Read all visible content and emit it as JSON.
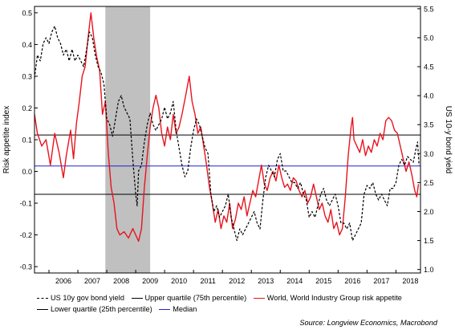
{
  "colors": {
    "risk": "#e8141e",
    "yield": "#000000",
    "upper": "#000000",
    "lower": "#000000",
    "median": "#2222cc",
    "recession": "#c0c0c0"
  },
  "source": "Source: Longview Economics, Macrobond",
  "chart_data": {
    "type": "line",
    "xlim": [
      2005.5,
      2018.85
    ],
    "x_ticks": [
      "2006",
      "2007",
      "2008",
      "2009",
      "2010",
      "2011",
      "2012",
      "2013",
      "2014",
      "2015",
      "2016",
      "2017",
      "2018"
    ],
    "y_left": {
      "label": "Risk appetite index",
      "range": [
        -0.32,
        0.52
      ],
      "ticks": [
        "0.5",
        "0.4",
        "0.3",
        "0.2",
        "0.1",
        "0.0",
        "-0.1",
        "-0.2",
        "-0.3"
      ]
    },
    "y_right": {
      "label": "US 10-y bond yield",
      "range": [
        0.94,
        5.54
      ],
      "ticks": [
        "5.5",
        "5.0",
        "4.5",
        "4.0",
        "3.5",
        "3.0",
        "2.5",
        "2.0",
        "1.5",
        "1.0"
      ]
    },
    "recession_band": [
      2007.95,
      2009.5
    ],
    "reference_lines": [
      {
        "name": "Upper quartile (75th percentile)",
        "value": 0.115,
        "color": "#000000"
      },
      {
        "name": "Median",
        "value": 0.017,
        "color": "#2222cc"
      },
      {
        "name": "Lower quartile (25th percentile)",
        "value": -0.072,
        "color": "#000000"
      }
    ],
    "legend": [
      {
        "name": "US 10y gov bond yield",
        "style": "dashed",
        "color": "#000000"
      },
      {
        "name": "Upper quartile (75th percentile)",
        "style": "solid",
        "color": "#000000"
      },
      {
        "name": "World, World Industry Group risk appetite",
        "style": "solid",
        "color": "#e8141e"
      },
      {
        "name": "Lower quartile (25th percentile)",
        "style": "solid",
        "color": "#000000"
      },
      {
        "name": "Median",
        "style": "solid",
        "color": "#2222cc"
      }
    ],
    "series": [
      {
        "name": "World, World Industry Group risk appetite",
        "axis": "left",
        "color": "#e8141e",
        "points": [
          [
            2005.5,
            0.18
          ],
          [
            2005.6,
            0.12
          ],
          [
            2005.75,
            0.08
          ],
          [
            2005.9,
            0.1
          ],
          [
            2006.05,
            0.02
          ],
          [
            2006.2,
            0.12
          ],
          [
            2006.35,
            0.06
          ],
          [
            2006.5,
            -0.02
          ],
          [
            2006.6,
            0.05
          ],
          [
            2006.75,
            0.13
          ],
          [
            2006.85,
            0.04
          ],
          [
            2006.95,
            0.15
          ],
          [
            2007.05,
            0.22
          ],
          [
            2007.15,
            0.3
          ],
          [
            2007.25,
            0.33
          ],
          [
            2007.35,
            0.42
          ],
          [
            2007.45,
            0.5
          ],
          [
            2007.55,
            0.42
          ],
          [
            2007.65,
            0.36
          ],
          [
            2007.75,
            0.32
          ],
          [
            2007.85,
            0.18
          ],
          [
            2007.95,
            0.22
          ],
          [
            2008.05,
            0.06
          ],
          [
            2008.15,
            -0.05
          ],
          [
            2008.25,
            -0.1
          ],
          [
            2008.35,
            -0.18
          ],
          [
            2008.45,
            -0.2
          ],
          [
            2008.6,
            -0.19
          ],
          [
            2008.75,
            -0.21
          ],
          [
            2008.9,
            -0.18
          ],
          [
            2009.0,
            -0.2
          ],
          [
            2009.1,
            -0.22
          ],
          [
            2009.2,
            -0.18
          ],
          [
            2009.3,
            -0.05
          ],
          [
            2009.4,
            0.05
          ],
          [
            2009.5,
            0.14
          ],
          [
            2009.6,
            0.2
          ],
          [
            2009.7,
            0.24
          ],
          [
            2009.8,
            0.2
          ],
          [
            2009.9,
            0.12
          ],
          [
            2010.0,
            0.08
          ],
          [
            2010.1,
            0.14
          ],
          [
            2010.2,
            0.1
          ],
          [
            2010.3,
            0.18
          ],
          [
            2010.4,
            0.12
          ],
          [
            2010.5,
            0.14
          ],
          [
            2010.6,
            0.18
          ],
          [
            2010.75,
            0.25
          ],
          [
            2010.85,
            0.3
          ],
          [
            2010.95,
            0.22
          ],
          [
            2011.05,
            0.18
          ],
          [
            2011.15,
            0.12
          ],
          [
            2011.25,
            0.14
          ],
          [
            2011.35,
            0.08
          ],
          [
            2011.45,
            0.02
          ],
          [
            2011.55,
            -0.05
          ],
          [
            2011.65,
            -0.1
          ],
          [
            2011.75,
            -0.16
          ],
          [
            2011.85,
            -0.12
          ],
          [
            2011.95,
            -0.18
          ],
          [
            2012.05,
            -0.14
          ],
          [
            2012.15,
            -0.16
          ],
          [
            2012.25,
            -0.1
          ],
          [
            2012.35,
            -0.18
          ],
          [
            2012.45,
            -0.15
          ],
          [
            2012.55,
            -0.1
          ],
          [
            2012.65,
            -0.12
          ],
          [
            2012.75,
            -0.08
          ],
          [
            2012.85,
            -0.14
          ],
          [
            2012.95,
            -0.1
          ],
          [
            2013.05,
            -0.06
          ],
          [
            2013.15,
            -0.08
          ],
          [
            2013.25,
            -0.03
          ],
          [
            2013.35,
            0.02
          ],
          [
            2013.45,
            -0.04
          ],
          [
            2013.55,
            -0.06
          ],
          [
            2013.65,
            -0.02
          ],
          [
            2013.75,
            0.0
          ],
          [
            2013.85,
            -0.03
          ],
          [
            2013.95,
            0.02
          ],
          [
            2014.05,
            -0.02
          ],
          [
            2014.15,
            -0.05
          ],
          [
            2014.25,
            -0.04
          ],
          [
            2014.35,
            -0.06
          ],
          [
            2014.45,
            -0.02
          ],
          [
            2014.55,
            -0.03
          ],
          [
            2014.65,
            -0.06
          ],
          [
            2014.75,
            -0.08
          ],
          [
            2014.85,
            -0.06
          ],
          [
            2014.95,
            -0.1
          ],
          [
            2015.05,
            -0.08
          ],
          [
            2015.15,
            -0.04
          ],
          [
            2015.25,
            -0.08
          ],
          [
            2015.35,
            -0.12
          ],
          [
            2015.45,
            -0.1
          ],
          [
            2015.55,
            -0.14
          ],
          [
            2015.65,
            -0.16
          ],
          [
            2015.75,
            -0.12
          ],
          [
            2015.85,
            -0.18
          ],
          [
            2015.95,
            -0.16
          ],
          [
            2016.05,
            -0.2
          ],
          [
            2016.15,
            -0.18
          ],
          [
            2016.25,
            -0.08
          ],
          [
            2016.35,
            0.05
          ],
          [
            2016.45,
            0.14
          ],
          [
            2016.5,
            0.17
          ],
          [
            2016.55,
            0.1
          ],
          [
            2016.65,
            0.08
          ],
          [
            2016.75,
            0.06
          ],
          [
            2016.85,
            0.1
          ],
          [
            2016.95,
            0.05
          ],
          [
            2017.05,
            0.08
          ],
          [
            2017.15,
            0.06
          ],
          [
            2017.25,
            0.1
          ],
          [
            2017.35,
            0.08
          ],
          [
            2017.45,
            0.12
          ],
          [
            2017.55,
            0.1
          ],
          [
            2017.65,
            0.16
          ],
          [
            2017.75,
            0.17
          ],
          [
            2017.85,
            0.16
          ],
          [
            2017.95,
            0.13
          ],
          [
            2018.05,
            0.12
          ],
          [
            2018.15,
            0.08
          ],
          [
            2018.25,
            0.04
          ],
          [
            2018.35,
            0.0
          ],
          [
            2018.45,
            0.03
          ],
          [
            2018.55,
            -0.01
          ],
          [
            2018.65,
            -0.06
          ],
          [
            2018.72,
            -0.08
          ],
          [
            2018.78,
            -0.04
          ]
        ]
      },
      {
        "name": "US 10y gov bond yield",
        "axis": "right",
        "color": "#000000",
        "points": [
          [
            2005.5,
            4.3
          ],
          [
            2005.6,
            4.7
          ],
          [
            2005.7,
            4.6
          ],
          [
            2005.8,
            4.9
          ],
          [
            2005.9,
            5.0
          ],
          [
            2006.0,
            4.9
          ],
          [
            2006.1,
            5.1
          ],
          [
            2006.2,
            5.2
          ],
          [
            2006.3,
            5.0
          ],
          [
            2006.4,
            4.9
          ],
          [
            2006.5,
            4.7
          ],
          [
            2006.6,
            4.8
          ],
          [
            2006.7,
            4.6
          ],
          [
            2006.8,
            4.8
          ],
          [
            2006.9,
            4.6
          ],
          [
            2007.0,
            4.7
          ],
          [
            2007.1,
            4.6
          ],
          [
            2007.2,
            4.5
          ],
          [
            2007.3,
            4.8
          ],
          [
            2007.4,
            5.1
          ],
          [
            2007.5,
            5.0
          ],
          [
            2007.6,
            4.7
          ],
          [
            2007.7,
            4.5
          ],
          [
            2007.8,
            4.4
          ],
          [
            2007.9,
            4.2
          ],
          [
            2008.0,
            3.6
          ],
          [
            2008.1,
            3.5
          ],
          [
            2008.2,
            3.3
          ],
          [
            2008.3,
            3.6
          ],
          [
            2008.4,
            3.9
          ],
          [
            2008.5,
            4.0
          ],
          [
            2008.6,
            3.8
          ],
          [
            2008.7,
            3.7
          ],
          [
            2008.8,
            3.6
          ],
          [
            2008.9,
            2.9
          ],
          [
            2009.0,
            2.3
          ],
          [
            2009.05,
            2.1
          ],
          [
            2009.1,
            2.7
          ],
          [
            2009.2,
            2.8
          ],
          [
            2009.3,
            3.2
          ],
          [
            2009.4,
            3.5
          ],
          [
            2009.5,
            3.7
          ],
          [
            2009.6,
            3.5
          ],
          [
            2009.7,
            3.4
          ],
          [
            2009.8,
            3.5
          ],
          [
            2009.9,
            3.6
          ],
          [
            2010.0,
            3.8
          ],
          [
            2010.1,
            3.6
          ],
          [
            2010.2,
            3.7
          ],
          [
            2010.3,
            3.9
          ],
          [
            2010.4,
            3.4
          ],
          [
            2010.5,
            3.1
          ],
          [
            2010.6,
            2.8
          ],
          [
            2010.7,
            2.6
          ],
          [
            2010.8,
            2.7
          ],
          [
            2010.9,
            3.1
          ],
          [
            2011.0,
            3.4
          ],
          [
            2011.1,
            3.6
          ],
          [
            2011.2,
            3.5
          ],
          [
            2011.3,
            3.3
          ],
          [
            2011.4,
            3.1
          ],
          [
            2011.5,
            3.0
          ],
          [
            2011.6,
            2.3
          ],
          [
            2011.7,
            2.0
          ],
          [
            2011.8,
            2.1
          ],
          [
            2011.9,
            1.9
          ],
          [
            2012.0,
            2.0
          ],
          [
            2012.1,
            2.1
          ],
          [
            2012.2,
            2.3
          ],
          [
            2012.3,
            1.9
          ],
          [
            2012.4,
            1.7
          ],
          [
            2012.5,
            1.5
          ],
          [
            2012.6,
            1.7
          ],
          [
            2012.7,
            1.6
          ],
          [
            2012.8,
            1.7
          ],
          [
            2012.9,
            1.8
          ],
          [
            2013.0,
            1.9
          ],
          [
            2013.1,
            2.0
          ],
          [
            2013.2,
            1.8
          ],
          [
            2013.3,
            1.7
          ],
          [
            2013.4,
            2.2
          ],
          [
            2013.5,
            2.6
          ],
          [
            2013.6,
            2.8
          ],
          [
            2013.7,
            2.7
          ],
          [
            2013.8,
            2.6
          ],
          [
            2013.9,
            2.9
          ],
          [
            2014.0,
            3.0
          ],
          [
            2014.1,
            2.7
          ],
          [
            2014.2,
            2.7
          ],
          [
            2014.3,
            2.6
          ],
          [
            2014.4,
            2.5
          ],
          [
            2014.5,
            2.5
          ],
          [
            2014.6,
            2.4
          ],
          [
            2014.7,
            2.5
          ],
          [
            2014.8,
            2.3
          ],
          [
            2014.9,
            2.2
          ],
          [
            2015.0,
            1.9
          ],
          [
            2015.1,
            2.0
          ],
          [
            2015.2,
            1.9
          ],
          [
            2015.3,
            2.1
          ],
          [
            2015.4,
            2.3
          ],
          [
            2015.5,
            2.4
          ],
          [
            2015.6,
            2.2
          ],
          [
            2015.7,
            2.1
          ],
          [
            2015.8,
            2.2
          ],
          [
            2015.9,
            2.3
          ],
          [
            2016.0,
            2.1
          ],
          [
            2016.1,
            1.8
          ],
          [
            2016.2,
            1.8
          ],
          [
            2016.3,
            1.7
          ],
          [
            2016.4,
            1.8
          ],
          [
            2016.5,
            1.5
          ],
          [
            2016.6,
            1.6
          ],
          [
            2016.7,
            1.7
          ],
          [
            2016.8,
            1.8
          ],
          [
            2016.9,
            2.3
          ],
          [
            2017.0,
            2.45
          ],
          [
            2017.1,
            2.4
          ],
          [
            2017.2,
            2.5
          ],
          [
            2017.3,
            2.3
          ],
          [
            2017.4,
            2.2
          ],
          [
            2017.5,
            2.3
          ],
          [
            2017.6,
            2.2
          ],
          [
            2017.7,
            2.1
          ],
          [
            2017.8,
            2.4
          ],
          [
            2017.9,
            2.4
          ],
          [
            2018.0,
            2.5
          ],
          [
            2018.1,
            2.8
          ],
          [
            2018.2,
            2.9
          ],
          [
            2018.3,
            2.8
          ],
          [
            2018.4,
            2.95
          ],
          [
            2018.5,
            2.9
          ],
          [
            2018.6,
            2.85
          ],
          [
            2018.7,
            3.1
          ],
          [
            2018.75,
            3.2
          ],
          [
            2018.8,
            2.8
          ]
        ]
      }
    ]
  }
}
